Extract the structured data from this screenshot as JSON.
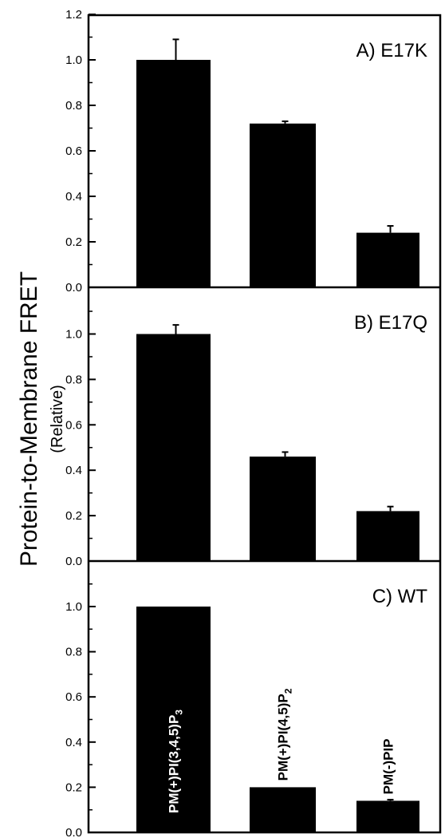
{
  "ylabel": "Protein-to-Membrane FRET",
  "ylabel_sub": "(Relative)",
  "chart_data": [
    {
      "type": "bar",
      "panel_label": "A) E17K",
      "categories": [
        "PM(+)PI(3,4,5)P3",
        "PM(+)PI(4,5)P2",
        "PM(-)PIP"
      ],
      "values": [
        1.0,
        0.72,
        0.24
      ],
      "errors": [
        0.09,
        0.01,
        0.03
      ],
      "ylim": [
        0,
        1.2
      ],
      "yticks": [
        "0.0",
        "0.2",
        "0.4",
        "0.6",
        "0.8",
        "1.0",
        "1.2"
      ],
      "show_category_labels": false
    },
    {
      "type": "bar",
      "panel_label": "B) E17Q",
      "categories": [
        "PM(+)PI(3,4,5)P3",
        "PM(+)PI(4,5)P2",
        "PM(-)PIP"
      ],
      "values": [
        1.0,
        0.46,
        0.22
      ],
      "errors": [
        0.04,
        0.02,
        0.02
      ],
      "ylim": [
        0,
        1.2
      ],
      "yticks": [
        "0.0",
        "0.2",
        "0.4",
        "0.6",
        "0.8",
        "1.0"
      ],
      "show_category_labels": false
    },
    {
      "type": "bar",
      "panel_label": "C) WT",
      "categories": [
        "PM(+)PI(3,4,5)P3",
        "PM(+)PI(4,5)P2",
        "PM(-)PIP"
      ],
      "category_labels": [
        {
          "text": "PM(+)PI(3,4,5)P",
          "sub": "3"
        },
        {
          "text": "PM(+)PI(4,5)P",
          "sub": "2"
        },
        {
          "text": "PM(-)PIP",
          "sub": ""
        }
      ],
      "values": [
        1.0,
        0.2,
        0.14
      ],
      "errors": [
        0.0,
        0.0,
        0.005
      ],
      "ylim": [
        0,
        1.2
      ],
      "yticks": [
        "0.0",
        "0.2",
        "0.4",
        "0.6",
        "0.8",
        "1.0"
      ],
      "show_category_labels": true
    }
  ]
}
